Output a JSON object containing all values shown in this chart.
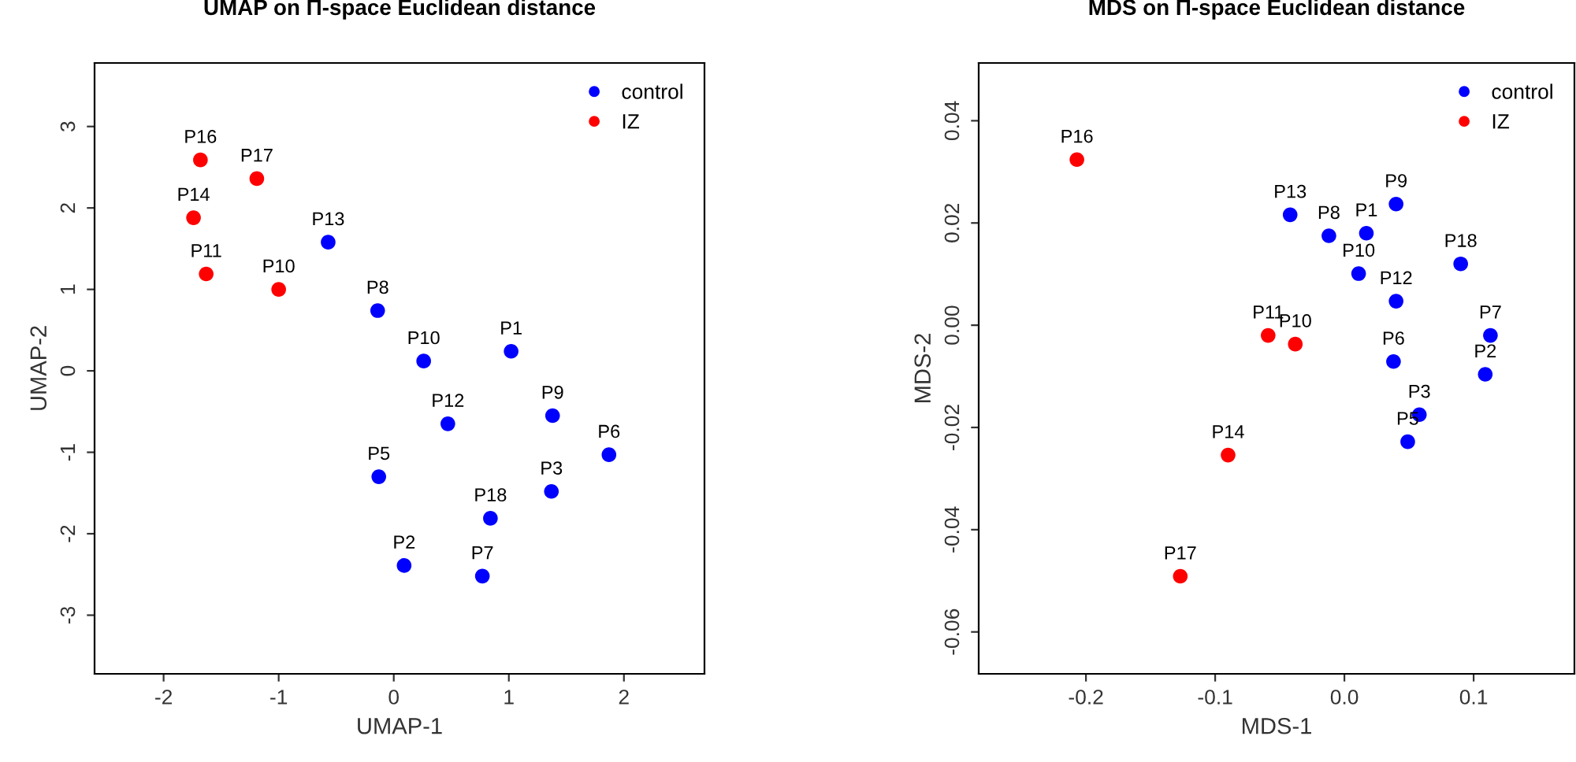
{
  "chart_data": [
    {
      "type": "scatter",
      "title": "UMAP on Π-space Euclidean distance",
      "xlabel": "UMAP-1",
      "ylabel": "UMAP-2",
      "xlim": [
        -2.6,
        2.7
      ],
      "ylim": [
        -3.72,
        3.78
      ],
      "xticks": [
        -2,
        -1,
        0,
        1,
        2
      ],
      "yticks": [
        -3,
        -2,
        -1,
        0,
        1,
        2,
        3
      ],
      "grid": false,
      "legend": "top right",
      "marker": "circle",
      "series": [
        {
          "name": "control",
          "color": "#0000ff",
          "x": [
            -0.57,
            -0.14,
            0.26,
            1.02,
            0.47,
            1.38,
            1.87,
            -0.13,
            1.37,
            0.84,
            0.09,
            0.77
          ],
          "values": [
            1.58,
            0.74,
            0.12,
            0.24,
            -0.65,
            -0.55,
            -1.03,
            -1.3,
            -1.48,
            -1.81,
            -2.39,
            -2.52
          ]
        },
        {
          "name": "IZ",
          "color": "#ff0000",
          "x": [
            -1.68,
            -1.19,
            -1.74,
            -1.63,
            -1.0
          ],
          "values": [
            2.59,
            2.36,
            1.88,
            1.19,
            1.0
          ]
        }
      ],
      "annotations": [
        {
          "text": "P13",
          "x": -0.57,
          "y": 1.58
        },
        {
          "text": "P8",
          "x": -0.14,
          "y": 0.74
        },
        {
          "text": "P10",
          "x": 0.26,
          "y": 0.12
        },
        {
          "text": "P1",
          "x": 1.02,
          "y": 0.24
        },
        {
          "text": "P12",
          "x": 0.47,
          "y": -0.65
        },
        {
          "text": "P9",
          "x": 1.38,
          "y": -0.55
        },
        {
          "text": "P6",
          "x": 1.87,
          "y": -1.03
        },
        {
          "text": "P5",
          "x": -0.13,
          "y": -1.3
        },
        {
          "text": "P3",
          "x": 1.37,
          "y": -1.48
        },
        {
          "text": "P18",
          "x": 0.84,
          "y": -1.81
        },
        {
          "text": "P2",
          "x": 0.09,
          "y": -2.39
        },
        {
          "text": "P7",
          "x": 0.77,
          "y": -2.52
        },
        {
          "text": "P16",
          "x": -1.68,
          "y": 2.59
        },
        {
          "text": "P17",
          "x": -1.19,
          "y": 2.36
        },
        {
          "text": "P14",
          "x": -1.74,
          "y": 1.88
        },
        {
          "text": "P11",
          "x": -1.63,
          "y": 1.19
        },
        {
          "text": "P10",
          "x": -1.0,
          "y": 1.0
        }
      ]
    },
    {
      "type": "scatter",
      "title": "MDS on Π-space Euclidean distance",
      "xlabel": "MDS-1",
      "ylabel": "MDS-2",
      "xlim": [
        -0.283,
        0.178
      ],
      "ylim": [
        -0.0682,
        0.0513
      ],
      "xticks": [
        {
          "value": -0.2,
          "label": "-0.2"
        },
        {
          "value": -0.1,
          "label": "-0.1"
        },
        {
          "value": 0.0,
          "label": "0.0"
        },
        {
          "value": 0.1,
          "label": "0.1"
        }
      ],
      "yticks": [
        {
          "value": -0.06,
          "label": "-0.06"
        },
        {
          "value": -0.04,
          "label": "-0.04"
        },
        {
          "value": -0.02,
          "label": "-0.02"
        },
        {
          "value": 0.0,
          "label": "0.00"
        },
        {
          "value": 0.02,
          "label": "0.02"
        },
        {
          "value": 0.04,
          "label": "0.04"
        }
      ],
      "grid": false,
      "legend": "top right",
      "marker": "circle",
      "series": [
        {
          "name": "control",
          "color": "#0000ff",
          "x": [
            -0.042,
            -0.012,
            0.017,
            0.04,
            0.011,
            0.09,
            0.04,
            0.113,
            0.038,
            0.109,
            0.058,
            0.049
          ],
          "values": [
            0.0216,
            0.0175,
            0.018,
            0.0237,
            0.0101,
            0.012,
            0.0047,
            -0.002,
            -0.0071,
            -0.0096,
            -0.0175,
            -0.0228
          ]
        },
        {
          "name": "IZ",
          "color": "#ff0000",
          "x": [
            -0.207,
            -0.059,
            -0.038,
            -0.09,
            -0.127
          ],
          "values": [
            0.0324,
            -0.002,
            -0.0037,
            -0.0254,
            -0.0491
          ]
        }
      ],
      "annotations": [
        {
          "text": "P13",
          "x": -0.042,
          "y": 0.0216
        },
        {
          "text": "P8",
          "x": -0.012,
          "y": 0.0175
        },
        {
          "text": "P1",
          "x": 0.017,
          "y": 0.018
        },
        {
          "text": "P9",
          "x": 0.04,
          "y": 0.0237
        },
        {
          "text": "P10",
          "x": 0.011,
          "y": 0.0101
        },
        {
          "text": "P18",
          "x": 0.09,
          "y": 0.012
        },
        {
          "text": "P12",
          "x": 0.04,
          "y": 0.0047
        },
        {
          "text": "P7",
          "x": 0.113,
          "y": -0.002
        },
        {
          "text": "P6",
          "x": 0.038,
          "y": -0.0071
        },
        {
          "text": "P2",
          "x": 0.109,
          "y": -0.0096
        },
        {
          "text": "P3",
          "x": 0.058,
          "y": -0.0175
        },
        {
          "text": "P5",
          "x": 0.049,
          "y": -0.0228
        },
        {
          "text": "P16",
          "x": -0.207,
          "y": 0.0324
        },
        {
          "text": "P11",
          "x": -0.059,
          "y": -0.002
        },
        {
          "text": "P10",
          "x": -0.038,
          "y": -0.0037
        },
        {
          "text": "P14",
          "x": -0.09,
          "y": -0.0254
        },
        {
          "text": "P17",
          "x": -0.127,
          "y": -0.0491
        }
      ]
    }
  ]
}
